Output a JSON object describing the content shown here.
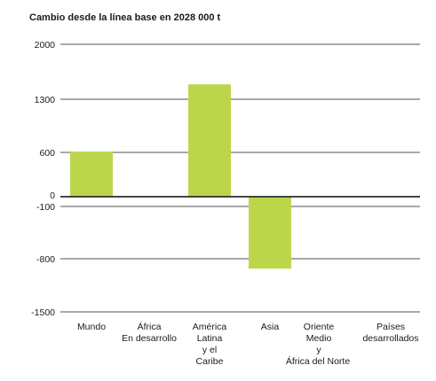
{
  "chart_data": {
    "type": "bar",
    "title": "Cambio desde la línea base en 2028 000 t",
    "categories": [
      [
        "Mundo"
      ],
      [
        "África",
        "En desarrollo"
      ],
      [
        "América",
        "Latina",
        "y el",
        "Caribe"
      ],
      [
        "Asia"
      ],
      [
        "Oriente",
        "Medio",
        "y",
        "África del Norte"
      ],
      [
        "Países",
        "desarrollados"
      ]
    ],
    "values": [
      610,
      0,
      1490,
      -890,
      0,
      0
    ],
    "y_ticks": [
      {
        "value": 2000,
        "label": "2000"
      },
      {
        "value": 1300,
        "label": "1300"
      },
      {
        "value": 600,
        "label": "600"
      },
      {
        "value": 0,
        "label": "0"
      },
      {
        "value": -100,
        "label": "-100"
      },
      {
        "value": -800,
        "label": "-800"
      },
      {
        "value": -1500,
        "label": "-1500"
      }
    ],
    "ylim": [
      -1500,
      2000
    ],
    "bar_color": "#bcd64c",
    "grid_color": "#8c8c8c",
    "zero_line_color": "#2b2b2b",
    "text_color": "#1a1a1a",
    "grid": true,
    "legend": "none"
  }
}
